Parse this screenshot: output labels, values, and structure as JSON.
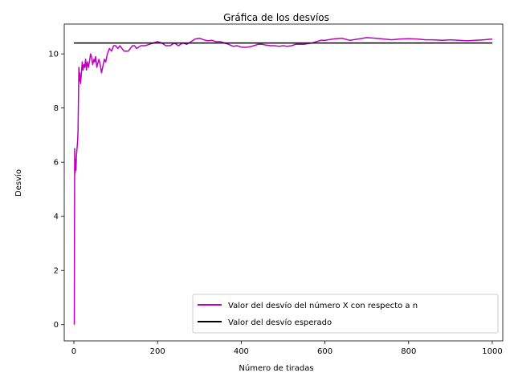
{
  "chart_data": {
    "type": "line",
    "title": "Gráfica de los desvíos",
    "xlabel": "Número de tiradas",
    "ylabel": "Desvío",
    "xlim": [
      -23,
      1025
    ],
    "ylim": [
      -0.6,
      11.1
    ],
    "xticks": [
      0,
      200,
      400,
      600,
      800,
      1000
    ],
    "yticks": [
      0,
      2,
      4,
      6,
      8,
      10
    ],
    "grid": false,
    "legend_position": "lower-right",
    "series": [
      {
        "name": "Valor del desvío del número X con respecto a n",
        "color": "#bf00bf",
        "x": [
          1,
          2,
          3,
          4,
          5,
          6,
          7,
          8,
          9,
          10,
          12,
          13,
          14,
          15,
          16,
          18,
          20,
          22,
          24,
          26,
          28,
          30,
          32,
          35,
          38,
          40,
          42,
          45,
          48,
          50,
          52,
          55,
          58,
          60,
          63,
          66,
          70,
          73,
          76,
          80,
          85,
          90,
          95,
          100,
          105,
          110,
          115,
          120,
          125,
          130,
          135,
          140,
          145,
          150,
          160,
          170,
          180,
          190,
          200,
          210,
          220,
          230,
          240,
          250,
          260,
          270,
          280,
          290,
          300,
          310,
          320,
          330,
          340,
          350,
          360,
          370,
          380,
          390,
          400,
          410,
          420,
          430,
          440,
          450,
          460,
          470,
          480,
          490,
          500,
          510,
          520,
          530,
          540,
          550,
          560,
          570,
          580,
          590,
          600,
          620,
          640,
          660,
          680,
          700,
          720,
          740,
          760,
          780,
          800,
          820,
          840,
          860,
          880,
          900,
          920,
          940,
          960,
          980,
          1000
        ],
        "y": [
          0.0,
          6.5,
          5.6,
          6.1,
          5.7,
          6.2,
          6.4,
          6.6,
          6.8,
          7.2,
          9.5,
          9.0,
          9.3,
          9.1,
          8.9,
          9.3,
          9.7,
          9.4,
          9.6,
          9.5,
          9.8,
          9.4,
          9.7,
          9.5,
          9.8,
          10.0,
          9.9,
          9.6,
          9.8,
          9.7,
          9.9,
          9.5,
          9.7,
          9.8,
          9.6,
          9.3,
          9.6,
          9.8,
          9.7,
          10.0,
          10.2,
          10.1,
          10.3,
          10.3,
          10.2,
          10.3,
          10.2,
          10.1,
          10.1,
          10.1,
          10.2,
          10.3,
          10.3,
          10.2,
          10.3,
          10.3,
          10.35,
          10.4,
          10.45,
          10.4,
          10.3,
          10.3,
          10.4,
          10.3,
          10.4,
          10.35,
          10.45,
          10.55,
          10.58,
          10.52,
          10.48,
          10.5,
          10.45,
          10.45,
          10.4,
          10.35,
          10.28,
          10.3,
          10.25,
          10.24,
          10.26,
          10.3,
          10.35,
          10.35,
          10.32,
          10.3,
          10.3,
          10.28,
          10.3,
          10.28,
          10.3,
          10.35,
          10.35,
          10.35,
          10.38,
          10.4,
          10.45,
          10.5,
          10.5,
          10.55,
          10.58,
          10.5,
          10.55,
          10.6,
          10.58,
          10.55,
          10.52,
          10.55,
          10.56,
          10.55,
          10.52,
          10.52,
          10.5,
          10.52,
          10.5,
          10.48,
          10.5,
          10.52,
          10.55
        ]
      },
      {
        "name": "Valor del desvío esperado",
        "color": "#000000",
        "x": [
          0,
          1000
        ],
        "y": [
          10.4,
          10.4
        ]
      }
    ]
  }
}
